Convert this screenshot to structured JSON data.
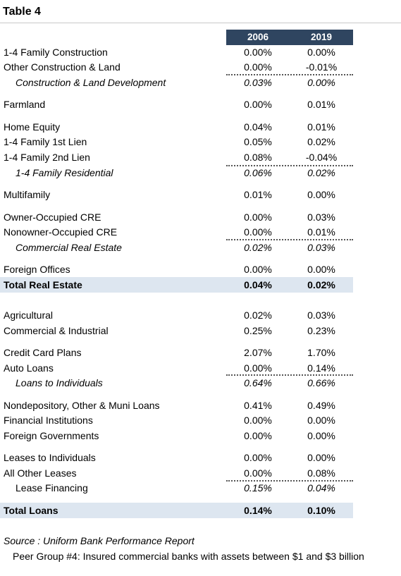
{
  "title": "Table 4",
  "columns": [
    "2006",
    "2019"
  ],
  "rows": {
    "r1": {
      "label": "1-4 Family Construction",
      "v2006": "0.00%",
      "v2019": "0.00%"
    },
    "r2": {
      "label": "Other Construction & Land",
      "v2006": "0.00%",
      "v2019": "-0.01%"
    },
    "r3": {
      "label": "Construction & Land Development",
      "v2006": "0.03%",
      "v2019": "0.00%"
    },
    "r4": {
      "label": "Farmland",
      "v2006": "0.00%",
      "v2019": "0.01%"
    },
    "r5": {
      "label": "Home Equity",
      "v2006": "0.04%",
      "v2019": "0.01%"
    },
    "r6": {
      "label": "1-4 Family 1st Lien",
      "v2006": "0.05%",
      "v2019": "0.02%"
    },
    "r7": {
      "label": "1-4 Family 2nd Lien",
      "v2006": "0.08%",
      "v2019": "-0.04%"
    },
    "r8": {
      "label": "1-4 Family Residential",
      "v2006": "0.06%",
      "v2019": "0.02%"
    },
    "r9": {
      "label": "Multifamily",
      "v2006": "0.01%",
      "v2019": "0.00%"
    },
    "r10": {
      "label": "Owner-Occupied CRE",
      "v2006": "0.00%",
      "v2019": "0.03%"
    },
    "r11": {
      "label": "Nonowner-Occupied CRE",
      "v2006": "0.00%",
      "v2019": "0.01%"
    },
    "r12": {
      "label": "Commercial Real Estate",
      "v2006": "0.02%",
      "v2019": "0.03%"
    },
    "r13": {
      "label": "Foreign Offices",
      "v2006": "0.00%",
      "v2019": "0.00%"
    },
    "r14": {
      "label": "Total Real Estate",
      "v2006": "0.04%",
      "v2019": "0.02%"
    },
    "r15": {
      "label": "Agricultural",
      "v2006": "0.02%",
      "v2019": "0.03%"
    },
    "r16": {
      "label": "Commercial & Industrial",
      "v2006": "0.25%",
      "v2019": "0.23%"
    },
    "r17": {
      "label": "Credit Card Plans",
      "v2006": "2.07%",
      "v2019": "1.70%"
    },
    "r18": {
      "label": "Auto Loans",
      "v2006": "0.00%",
      "v2019": "0.14%"
    },
    "r19": {
      "label": "Loans to Individuals",
      "v2006": "0.64%",
      "v2019": "0.66%"
    },
    "r20": {
      "label": "Nondepository, Other & Muni Loans",
      "v2006": "0.41%",
      "v2019": "0.49%"
    },
    "r21": {
      "label": "Financial Institutions",
      "v2006": "0.00%",
      "v2019": "0.00%"
    },
    "r22": {
      "label": "Foreign Governments",
      "v2006": "0.00%",
      "v2019": "0.00%"
    },
    "r23": {
      "label": "Leases to Individuals",
      "v2006": "0.00%",
      "v2019": "0.00%"
    },
    "r24": {
      "label": "All Other Leases",
      "v2006": "0.00%",
      "v2019": "0.08%"
    },
    "r25": {
      "label": "Lease Financing",
      "v2006": "0.15%",
      "v2019": "0.04%"
    },
    "r26": {
      "label": "Total Loans",
      "v2006": "0.14%",
      "v2019": "0.10%"
    }
  },
  "source": "Source :  Uniform Bank Performance Report",
  "peer_group": "Peer Group #4:  Insured commercial banks with assets between $1 and $3 billion"
}
